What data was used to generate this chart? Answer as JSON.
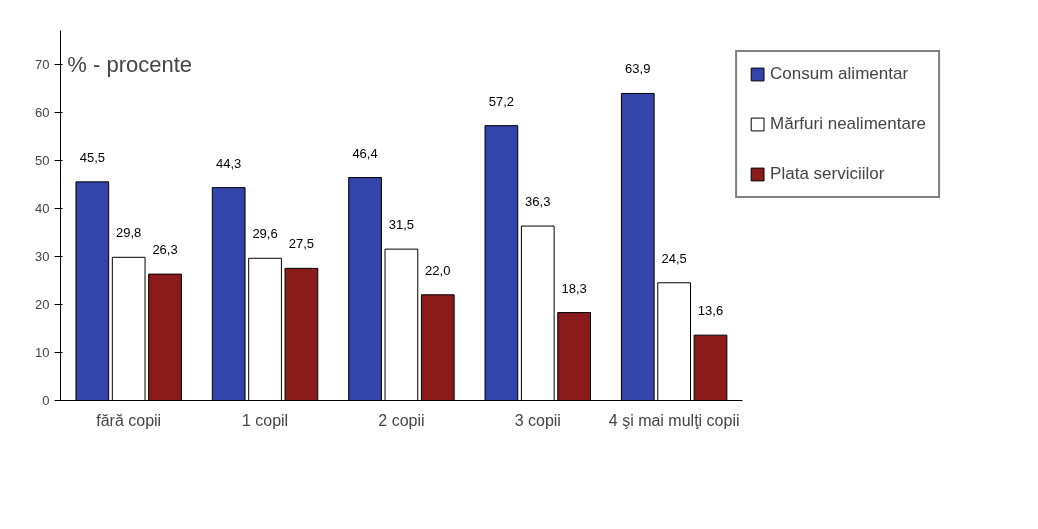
{
  "chart_data": {
    "type": "bar",
    "categories": [
      "fără copii",
      "1 copil",
      "2 copii",
      "3 copii",
      "4 şi mai mulţi copii"
    ],
    "series": [
      {
        "name": "Consum alimentar",
        "color": "#3344aa",
        "values": [
          45.5,
          44.3,
          46.4,
          57.2,
          63.9
        ]
      },
      {
        "name": "Mărfuri nealimentare",
        "color": "#ffffff",
        "values": [
          29.8,
          29.6,
          31.5,
          36.3,
          24.5
        ]
      },
      {
        "name": "Plata serviciilor",
        "color": "#8b1a1a",
        "values": [
          26.3,
          27.5,
          22.0,
          18.3,
          13.6
        ]
      }
    ],
    "value_labels": [
      [
        "45,5",
        "44,3",
        "46,4",
        "57,2",
        "63,9"
      ],
      [
        "29,8",
        "29,6",
        "31,5",
        "36,3",
        "24,5"
      ],
      [
        "26,3",
        "27,5",
        "22,0",
        "18,3",
        "13,6"
      ]
    ],
    "annotations": [
      "% - procente"
    ],
    "ylim": [
      0,
      77
    ],
    "yticks": [
      0,
      10,
      20,
      30,
      40,
      50,
      60,
      70
    ],
    "grid": false,
    "legend": "right"
  }
}
